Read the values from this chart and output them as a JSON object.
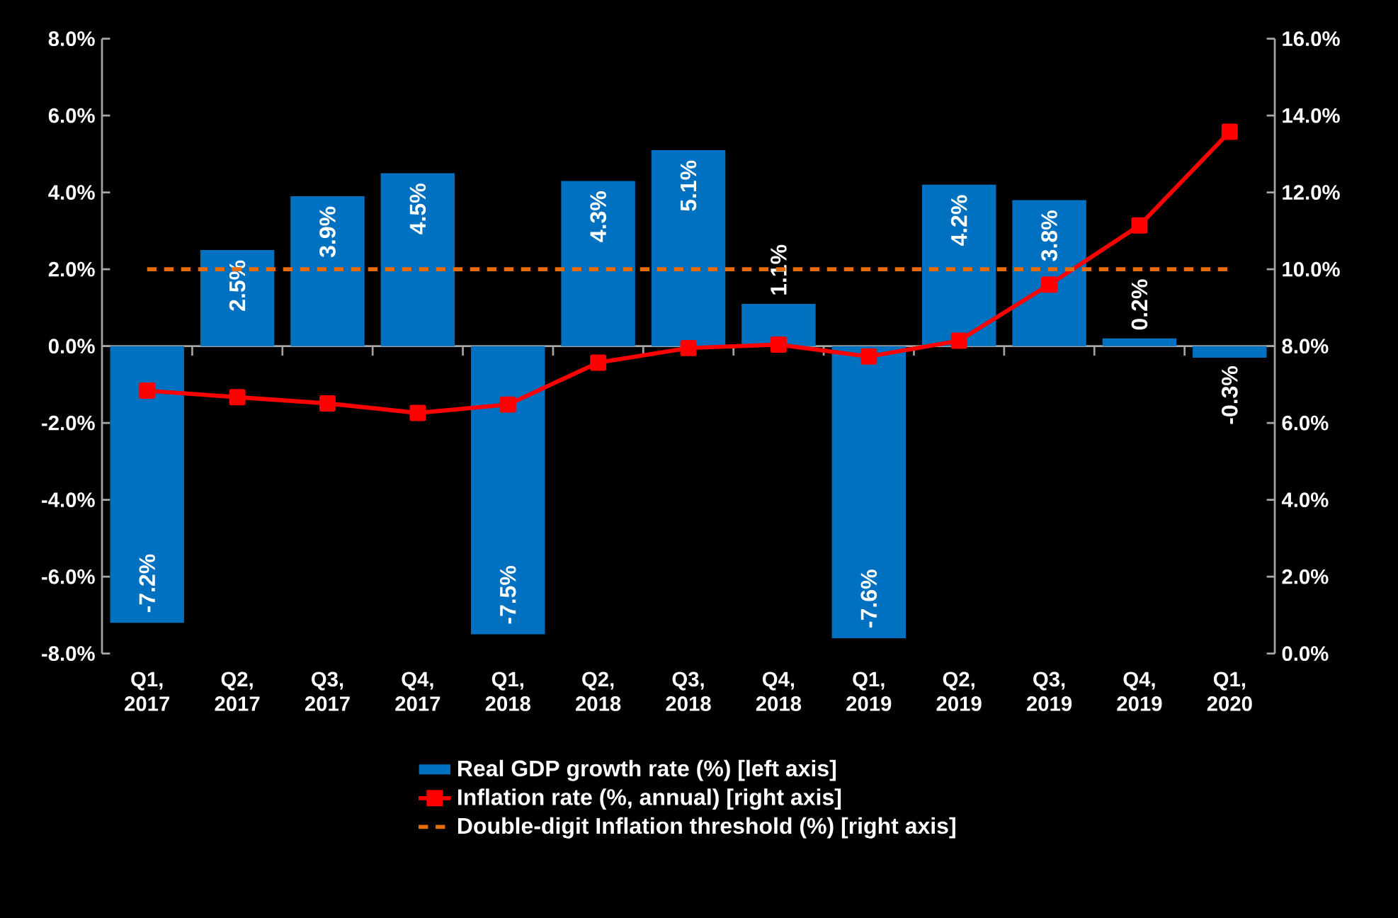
{
  "chart_data": {
    "type": "bar",
    "categories": [
      "Q1, 2017",
      "Q2, 2017",
      "Q3, 2017",
      "Q4, 2017",
      "Q1, 2018",
      "Q2, 2018",
      "Q3, 2018",
      "Q4, 2018",
      "Q1, 2019",
      "Q2, 2019",
      "Q3, 2019",
      "Q4, 2019",
      "Q1, 2020"
    ],
    "series": [
      {
        "name": "Real GDP growth rate (%) [left axis]",
        "color": "#0070c0",
        "values": [
          -7.2,
          2.5,
          3.9,
          4.5,
          -7.5,
          4.3,
          5.1,
          1.1,
          -7.6,
          4.2,
          3.8,
          0.2,
          -0.3
        ],
        "value_labels": [
          "-7.2%",
          "2.5%",
          "3.9%",
          "4.5%",
          "-7.5%",
          "4.3%",
          "5.1%",
          "1.1%",
          "-7.6%",
          "4.2%",
          "3.8%",
          "0.2%",
          "-0.3%"
        ]
      },
      {
        "name": "Inflation rate (%, annual) [right axis]",
        "type": "line",
        "axis": "y2",
        "color": "#ff0000",
        "marker": "square",
        "line_style": "solid",
        "values": [
          6.84,
          6.67,
          6.51,
          6.26,
          6.48,
          7.57,
          7.95,
          8.04,
          7.73,
          8.14,
          9.6,
          11.14,
          13.58
        ]
      },
      {
        "name": "Double-digit Inflation threshold (%) [right axis]",
        "type": "line",
        "axis": "y2",
        "color": "#e46c0a",
        "marker": "none",
        "line_style": "dashed",
        "values": [
          10,
          10,
          10,
          10,
          10,
          10,
          10,
          10,
          10,
          10,
          10,
          10,
          10
        ]
      }
    ],
    "ylim": [
      -8,
      8
    ],
    "yticks": [
      {
        "value": -8,
        "label": "-8.0%"
      },
      {
        "value": -6,
        "label": "-6.0%"
      },
      {
        "value": -4,
        "label": "-4.0%"
      },
      {
        "value": -2,
        "label": "-2.0%"
      },
      {
        "value": 0,
        "label": "0.0%"
      },
      {
        "value": 2,
        "label": "2.0%"
      },
      {
        "value": 4,
        "label": "4.0%"
      },
      {
        "value": 6,
        "label": "6.0%"
      },
      {
        "value": 8,
        "label": "8.0%"
      }
    ],
    "y2lim": [
      0,
      16
    ],
    "y2ticks": [
      {
        "value": 0,
        "label": "0.0%"
      },
      {
        "value": 2,
        "label": "2.0%"
      },
      {
        "value": 4,
        "label": "4.0%"
      },
      {
        "value": 6,
        "label": "6.0%"
      },
      {
        "value": 8,
        "label": "8.0%"
      },
      {
        "value": 10,
        "label": "10.0%"
      },
      {
        "value": 12,
        "label": "12.0%"
      },
      {
        "value": 14,
        "label": "14.0%"
      },
      {
        "value": 16,
        "label": "16.0%"
      }
    ],
    "legend": "bottom"
  }
}
